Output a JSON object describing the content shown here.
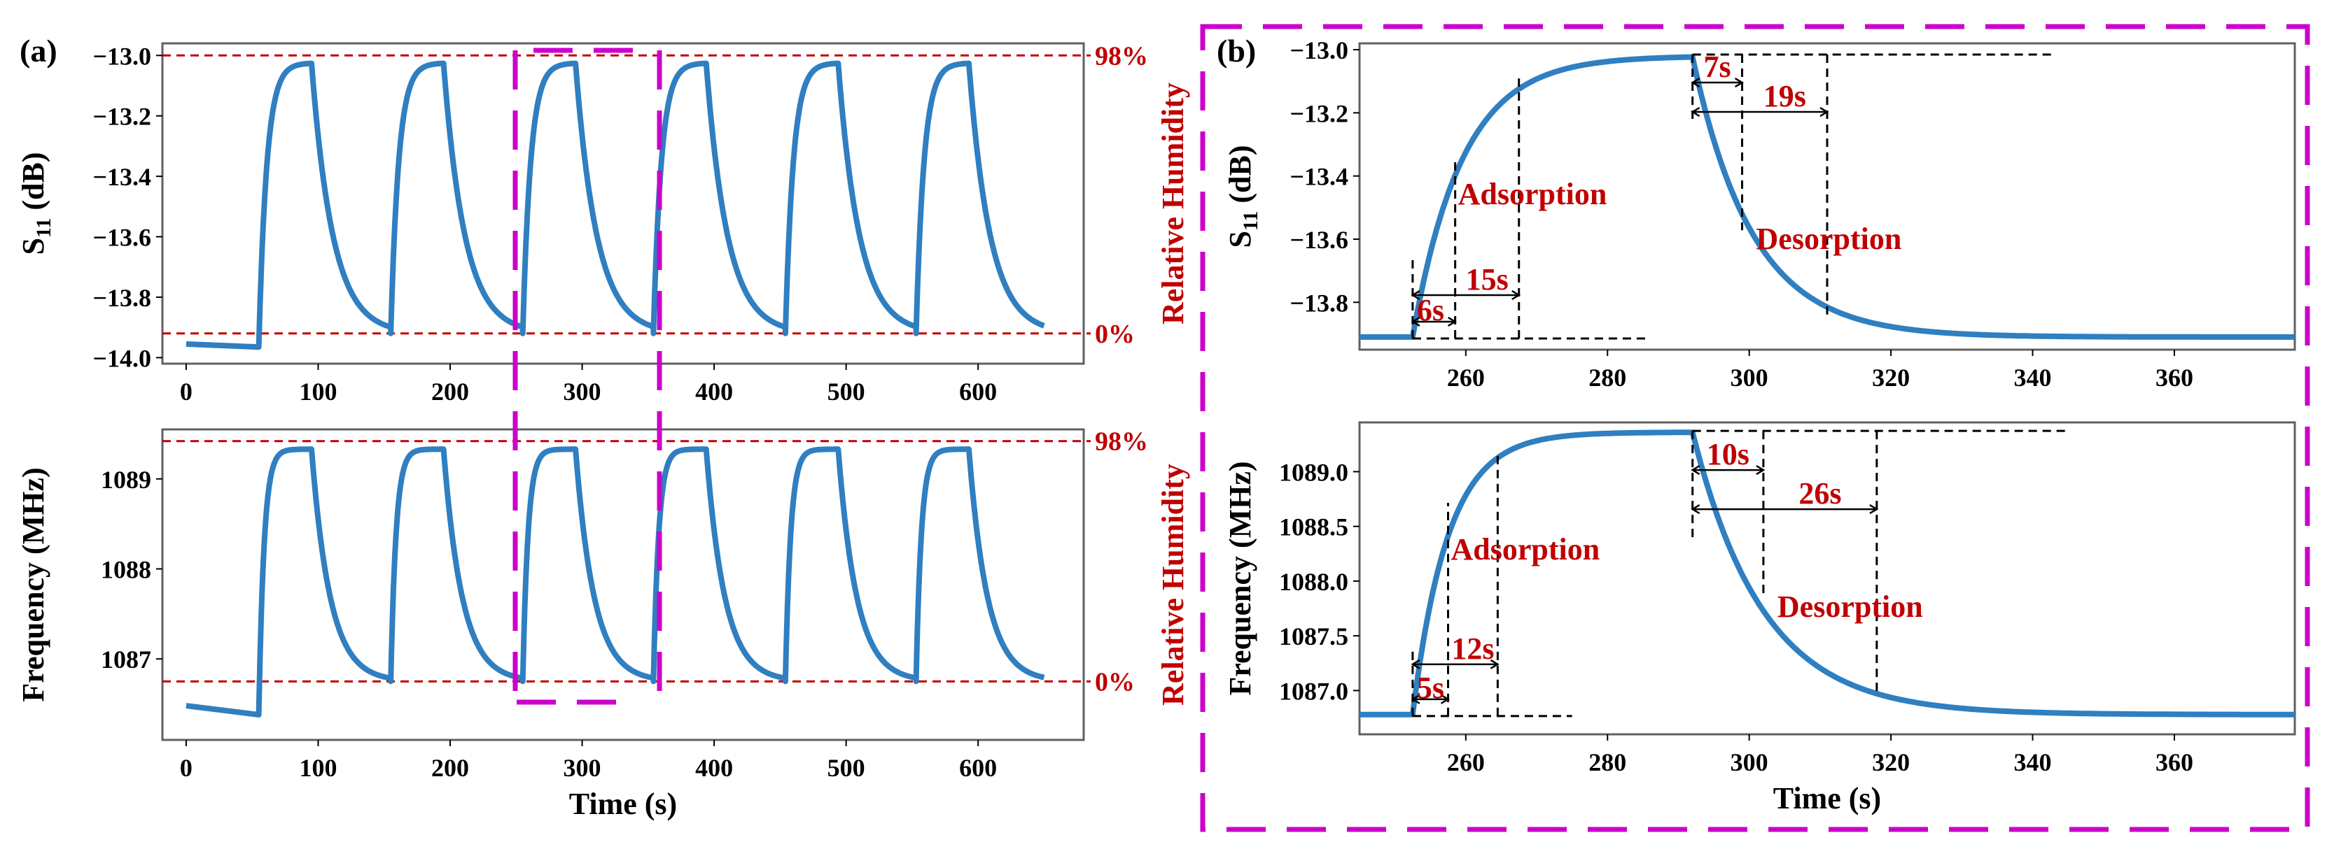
{
  "panel_labels": {
    "a": "(a)",
    "b": "(b)"
  },
  "colors": {
    "curve": "#2f7fc1",
    "ref_line": "#c00000",
    "annotation": "#c00000",
    "highlight_box": "#cc00cc",
    "dash": "#000000"
  },
  "chart_data": [
    {
      "id": "a-top",
      "type": "line",
      "ylabel_main": "S",
      "ylabel_sub": "11",
      "ylabel_unit": " (dB)",
      "right_label": "Relative Humidity",
      "xlim": [
        -18,
        680
      ],
      "ylim": [
        -14.02,
        -12.96
      ],
      "xticks": [
        0,
        100,
        200,
        300,
        400,
        500,
        600
      ],
      "yticks": [
        -14.0,
        -13.8,
        -13.6,
        -13.4,
        -13.2,
        -13.0
      ],
      "ytick_labels": [
        "−14.0",
        "−13.8",
        "−13.6",
        "−13.4",
        "−13.2",
        "−13.0"
      ],
      "ref_lines": [
        {
          "y": -13.0,
          "label": "98%"
        },
        {
          "y": -13.92,
          "label": "0%"
        }
      ],
      "cycles": {
        "starts": [
          55,
          155,
          255,
          354,
          454,
          553
        ],
        "durations": [
          40,
          40,
          40,
          40,
          40,
          40
        ],
        "low": -13.92,
        "high": -13.025,
        "tau_up": 6,
        "tau_down": 16,
        "baseline_start": -13.955,
        "baseline_end": -13.965,
        "end_x": 650
      }
    },
    {
      "id": "a-bottom",
      "type": "line",
      "ylabel_main": "Frequency (MHz)",
      "right_label": "Relative Humidity",
      "xlabel": "Time (s)",
      "xlim": [
        -18,
        680
      ],
      "ylim": [
        1086.1,
        1089.55
      ],
      "xticks": [
        0,
        100,
        200,
        300,
        400,
        500,
        600
      ],
      "yticks": [
        1087,
        1088,
        1089
      ],
      "ytick_labels": [
        "1087",
        "1088",
        "1089"
      ],
      "ref_lines": [
        {
          "y": 1089.42,
          "label": "98%"
        },
        {
          "y": 1086.75,
          "label": "0%"
        }
      ],
      "cycles": {
        "starts": [
          55,
          155,
          255,
          354,
          454,
          553
        ],
        "durations": [
          40,
          40,
          40,
          40,
          40,
          40
        ],
        "low": 1086.75,
        "high": 1089.33,
        "tau_up": 4,
        "tau_down": 14,
        "baseline_start": 1086.48,
        "baseline_end": 1086.38,
        "end_x": 650
      }
    },
    {
      "id": "b-top",
      "type": "line",
      "ylabel_main": "S",
      "ylabel_sub": "11",
      "ylabel_unit": " (dB)",
      "xlim": [
        245,
        377
      ],
      "ylim": [
        -13.95,
        -12.98
      ],
      "xticks": [
        260,
        280,
        300,
        320,
        340,
        360
      ],
      "yticks": [
        -13.8,
        -13.6,
        -13.4,
        -13.2,
        -13.0
      ],
      "ytick_labels": [
        "−13.8",
        "−13.6",
        "−13.4",
        "−13.2",
        "−13.0"
      ],
      "step": {
        "t_on": 252.5,
        "t_off": 292,
        "low": -13.91,
        "high": -13.02,
        "tau_up": 7,
        "tau_down": 8.5
      },
      "annotations": {
        "adsorption": "Adsorption",
        "desorption": "Desorption",
        "t_ads_90": "6s",
        "t_ads_full": "15s",
        "t_des_90": "7s",
        "t_des_full": "19s"
      }
    },
    {
      "id": "b-bottom",
      "type": "line",
      "ylabel_main": "Frequency (MHz)",
      "xlabel": "Time (s)",
      "xlim": [
        245,
        377
      ],
      "ylim": [
        1086.6,
        1089.45
      ],
      "xticks": [
        260,
        280,
        300,
        320,
        340,
        360
      ],
      "yticks": [
        1087.0,
        1087.5,
        1088.0,
        1088.5,
        1089.0
      ],
      "ytick_labels": [
        "1087.0",
        "1087.5",
        "1088.0",
        "1088.5",
        "1089.0"
      ],
      "step": {
        "t_on": 252.5,
        "t_off": 292,
        "low": 1086.78,
        "high": 1089.36,
        "tau_up": 5,
        "tau_down": 10
      },
      "annotations": {
        "adsorption": "Adsorption",
        "desorption": "Desorption",
        "t_ads_90": "5s",
        "t_ads_full": "12s",
        "t_des_90": "10s",
        "t_des_full": "26s"
      }
    }
  ]
}
